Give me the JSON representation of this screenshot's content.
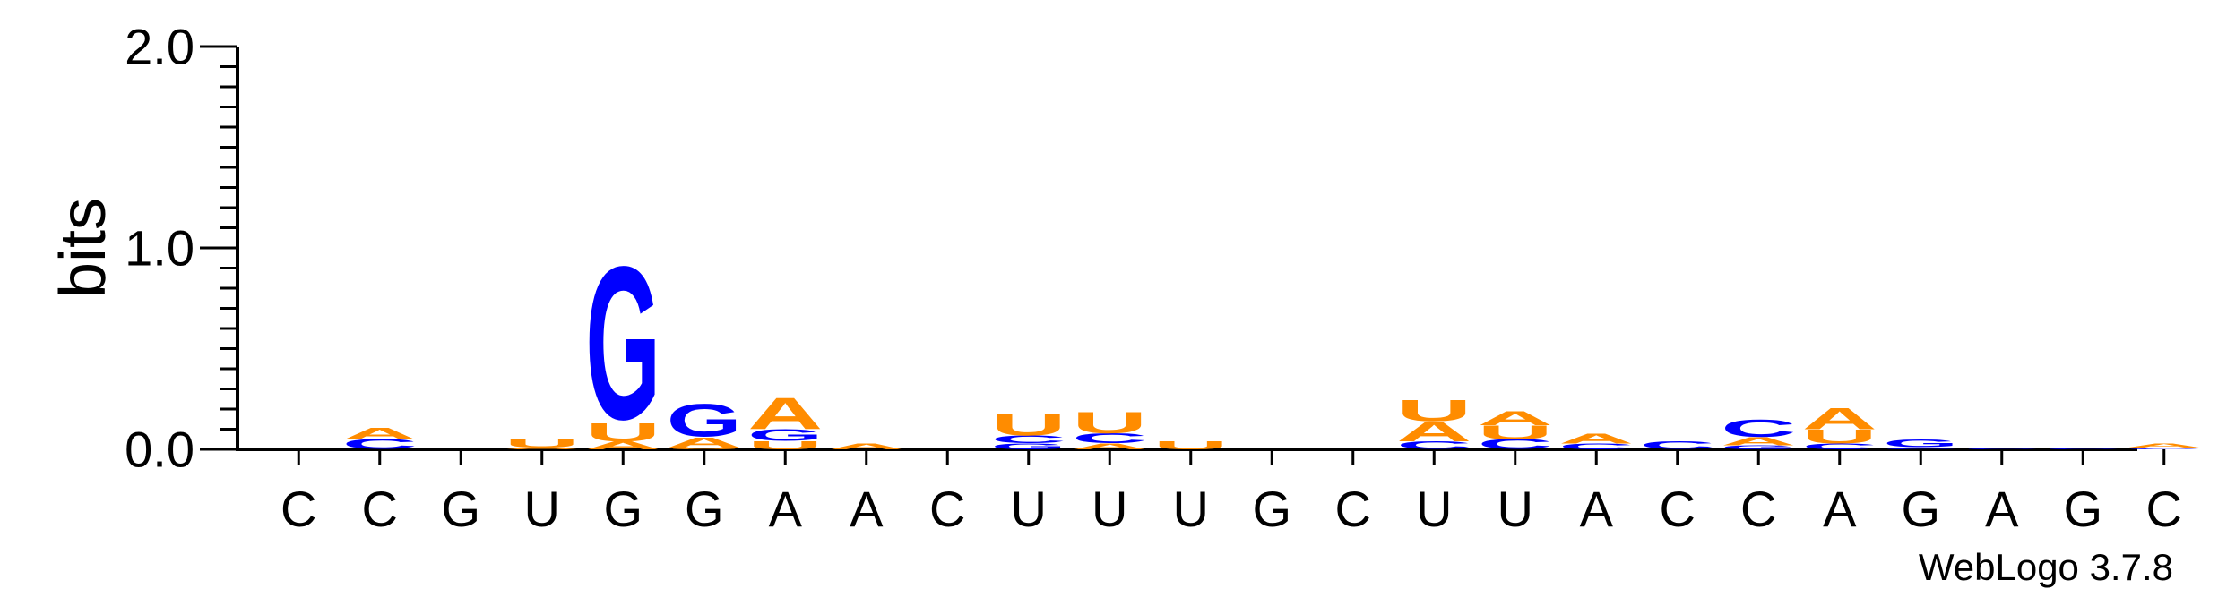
{
  "chart_data": {
    "type": "sequence-logo",
    "ylabel": "bits",
    "ylim": [
      0,
      2.0
    ],
    "yticks": [
      "0.0",
      "1.0",
      "2.0"
    ],
    "ytick_values": [
      0,
      1,
      2
    ],
    "minor_tick_step": 0.1,
    "colors": {
      "A": "#ff8c00",
      "U": "#ff8c00",
      "G": "#0000ff",
      "C": "#0000ff"
    },
    "positions": [
      "C",
      "C",
      "G",
      "U",
      "G",
      "G",
      "A",
      "A",
      "C",
      "U",
      "U",
      "U",
      "G",
      "C",
      "U",
      "U",
      "A",
      "C",
      "C",
      "A",
      "G",
      "A",
      "G",
      "C"
    ],
    "columns": [
      [],
      [
        [
          "C",
          0.05
        ],
        [
          "A",
          0.06
        ]
      ],
      [],
      [
        [
          "A",
          0.01
        ],
        [
          "U",
          0.04
        ]
      ],
      [
        [
          "A",
          0.04
        ],
        [
          "U",
          0.09
        ],
        [
          "G",
          0.8
        ]
      ],
      [
        [
          "U",
          0.01
        ],
        [
          "A",
          0.05
        ],
        [
          "G",
          0.17
        ]
      ],
      [
        [
          "U",
          0.04
        ],
        [
          "G",
          0.06
        ],
        [
          "A",
          0.16
        ]
      ],
      [
        [
          "A",
          0.03
        ]
      ],
      [],
      [
        [
          "G",
          0.03
        ],
        [
          "C",
          0.04
        ],
        [
          "U",
          0.11
        ]
      ],
      [
        [
          "A",
          0.03
        ],
        [
          "C",
          0.05
        ],
        [
          "U",
          0.11
        ]
      ],
      [
        [
          "U",
          0.04
        ]
      ],
      [],
      [],
      [
        [
          "C",
          0.04
        ],
        [
          "A",
          0.1
        ],
        [
          "U",
          0.11
        ]
      ],
      [
        [
          "C",
          0.05
        ],
        [
          "U",
          0.07
        ],
        [
          "A",
          0.07
        ]
      ],
      [
        [
          "C",
          0.03
        ],
        [
          "A",
          0.05
        ]
      ],
      [
        [
          "C",
          0.04
        ]
      ],
      [
        [
          "G",
          0.02
        ],
        [
          "A",
          0.04
        ],
        [
          "C",
          0.09
        ]
      ],
      [
        [
          "C",
          0.03
        ],
        [
          "U",
          0.07
        ],
        [
          "A",
          0.11
        ]
      ],
      [
        [
          "C",
          0.01
        ],
        [
          "G",
          0.04
        ]
      ],
      [
        [
          "C",
          0.01
        ]
      ],
      [
        [
          "C",
          0.01
        ]
      ],
      [
        [
          "C",
          0.01
        ],
        [
          "A",
          0.02
        ]
      ]
    ]
  },
  "credit": "WebLogo 3.7.8"
}
